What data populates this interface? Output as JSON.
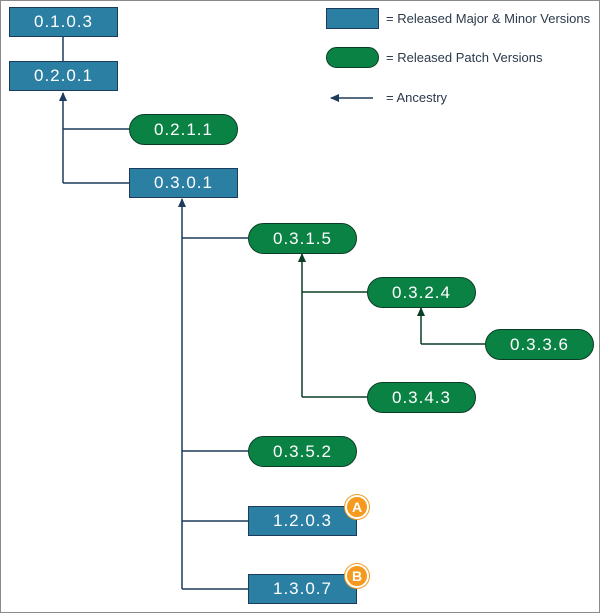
{
  "legend": {
    "major_minor": "= Released Major & Minor Versions",
    "patch": "= Released Patch Versions",
    "ancestry": "= Ancestry"
  },
  "nodes": {
    "v0103": "0.1.0.3",
    "v0201": "0.2.0.1",
    "v0211": "0.2.1.1",
    "v0301": "0.3.0.1",
    "v0315": "0.3.1.5",
    "v0324": "0.3.2.4",
    "v0336": "0.3.3.6",
    "v0343": "0.3.4.3",
    "v0352": "0.3.5.2",
    "v1203": "1.2.0.3",
    "v1307": "1.3.0.7"
  },
  "badges": {
    "a": "A",
    "b": "B"
  },
  "colors": {
    "major_fill": "#2a7fa3",
    "patch_fill": "#0a8244",
    "badge_fill": "#f59a1f",
    "navy_line": "#1d3b5c",
    "green_line": "#0b3d25"
  }
}
